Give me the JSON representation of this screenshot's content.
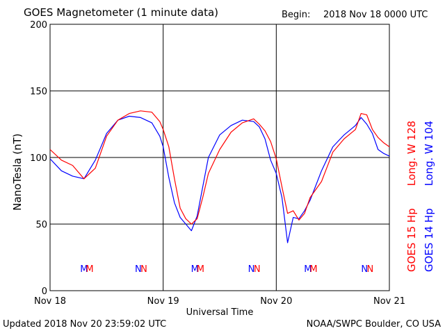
{
  "chart_data": {
    "type": "line",
    "title": "GOES Magnetometer (1 minute data)",
    "begin_label": "Begin:",
    "begin_value": "2018 Nov 18 0000 UTC",
    "xlabel": "Universal Time",
    "ylabel": "NanoTesla (nT)",
    "ylim": [
      0,
      200
    ],
    "yticks": [
      "0",
      "50",
      "100",
      "150",
      "200"
    ],
    "xlim_days": [
      0,
      3
    ],
    "xticks": [
      "Nov 18",
      "Nov 19",
      "Nov 20",
      "Nov 21"
    ],
    "grid": true,
    "series": [
      {
        "name": "GOES 15 Hp",
        "longitude_label": "Long. W 128",
        "color": "#ff0000",
        "x_days": [
          0,
          0.1,
          0.2,
          0.3,
          0.4,
          0.5,
          0.6,
          0.7,
          0.8,
          0.9,
          0.97,
          1.0,
          1.05,
          1.1,
          1.15,
          1.2,
          1.25,
          1.3,
          1.35,
          1.4,
          1.5,
          1.6,
          1.7,
          1.8,
          1.85,
          1.9,
          1.95,
          2.0,
          2.05,
          2.1,
          2.15,
          2.2,
          2.25,
          2.3,
          2.4,
          2.5,
          2.6,
          2.7,
          2.75,
          2.8,
          2.85,
          2.9,
          2.95,
          3.0
        ],
        "values": [
          106,
          98,
          94,
          84,
          92,
          116,
          128,
          133,
          135,
          134,
          127,
          121,
          108,
          84,
          62,
          54,
          50,
          54,
          70,
          88,
          106,
          119,
          126,
          129,
          125,
          120,
          112,
          99,
          78,
          58,
          60,
          53,
          58,
          70,
          82,
          104,
          114,
          121,
          133,
          132,
          121,
          115,
          111,
          108
        ],
        "maintenance_marks": [
          {
            "day": 0.35,
            "label": "M"
          },
          {
            "day": 0.83,
            "label": "N"
          },
          {
            "day": 1.33,
            "label": "M"
          },
          {
            "day": 1.83,
            "label": "N"
          },
          {
            "day": 2.33,
            "label": "M"
          },
          {
            "day": 2.83,
            "label": "N"
          }
        ]
      },
      {
        "name": "GOES 14 Hp",
        "longitude_label": "Long. W 104",
        "color": "#0000ff",
        "x_days": [
          0,
          0.1,
          0.2,
          0.3,
          0.4,
          0.5,
          0.6,
          0.7,
          0.8,
          0.9,
          0.97,
          1.0,
          1.05,
          1.1,
          1.15,
          1.2,
          1.25,
          1.3,
          1.35,
          1.4,
          1.5,
          1.6,
          1.7,
          1.8,
          1.85,
          1.9,
          1.95,
          2.0,
          2.05,
          2.1,
          2.15,
          2.2,
          2.25,
          2.3,
          2.4,
          2.5,
          2.6,
          2.7,
          2.75,
          2.8,
          2.85,
          2.9,
          2.95,
          3.0
        ],
        "values": [
          99,
          90,
          86,
          84,
          98,
          118,
          128,
          131,
          130,
          126,
          116,
          108,
          85,
          66,
          55,
          50,
          45,
          56,
          78,
          100,
          117,
          124,
          128,
          127,
          123,
          114,
          98,
          88,
          70,
          36,
          55,
          54,
          60,
          68,
          90,
          108,
          117,
          124,
          130,
          125,
          118,
          106,
          103,
          101
        ],
        "maintenance_marks": [
          {
            "day": 0.3,
            "label": "M"
          },
          {
            "day": 0.78,
            "label": "N"
          },
          {
            "day": 1.28,
            "label": "M"
          },
          {
            "day": 1.78,
            "label": "N"
          },
          {
            "day": 2.28,
            "label": "M"
          },
          {
            "day": 2.78,
            "label": "N"
          }
        ]
      }
    ]
  },
  "footer": {
    "updated": "Updated 2018 Nov 20 23:59:02 UTC",
    "source": "NOAA/SWPC Boulder, CO USA"
  }
}
